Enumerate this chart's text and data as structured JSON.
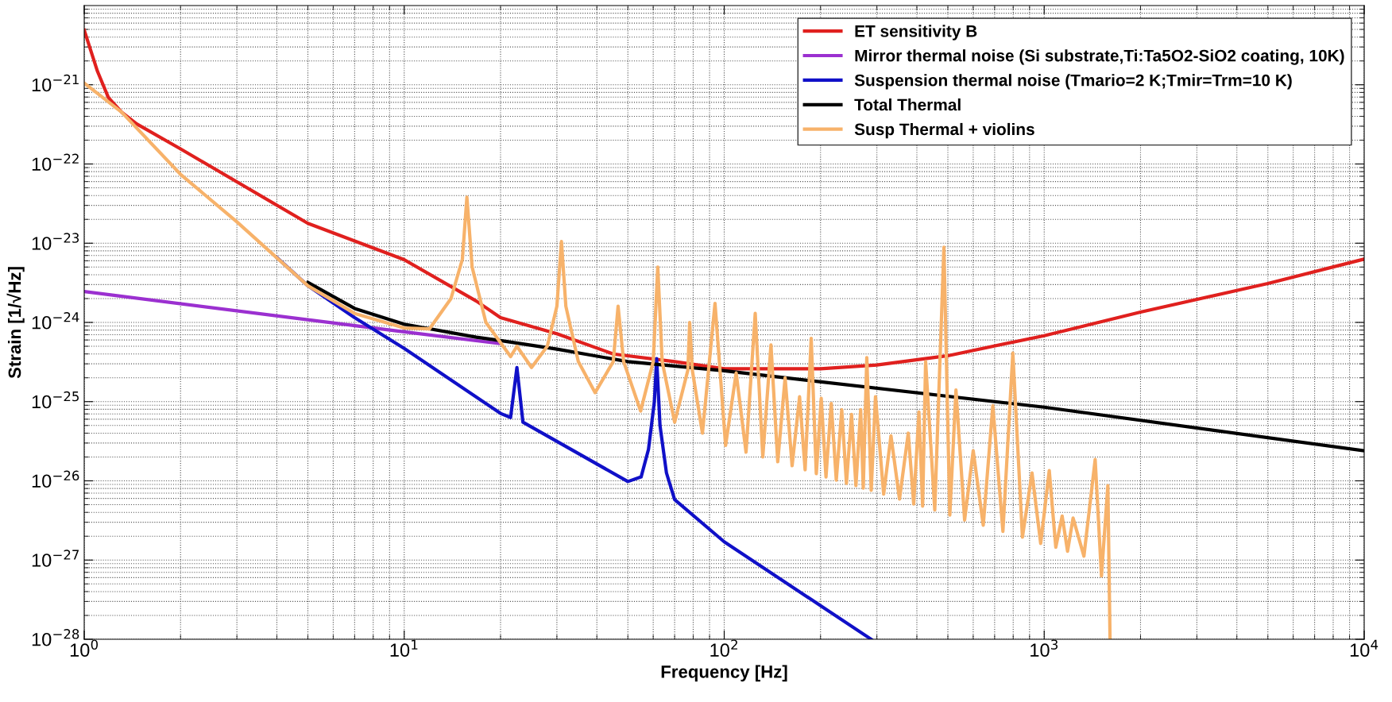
{
  "chart_data": {
    "type": "line",
    "xlabel": "Frequency [Hz]",
    "ylabel": "Strain [1/√Hz]",
    "log": "xy",
    "grid": true,
    "legend": "top right",
    "line_style": "solid",
    "marker": "none",
    "xlim": [
      1,
      10000
    ],
    "ylim": [
      1e-28,
      1e-20
    ],
    "xticks": [
      {
        "value": 1,
        "label": "10$^{0}$"
      },
      {
        "value": 10,
        "label": "10$^{1}$"
      },
      {
        "value": 100,
        "label": "10$^{2}$"
      },
      {
        "value": 1000,
        "label": "10$^{3}$"
      },
      {
        "value": 10000,
        "label": "10$^{4}$"
      }
    ],
    "yticks": [
      {
        "value": 1e-28,
        "label": "10$^{−28}$"
      },
      {
        "value": 1e-27,
        "label": "10$^{−27}$"
      },
      {
        "value": 1e-26,
        "label": "10$^{−26}$"
      },
      {
        "value": 1e-25,
        "label": "10$^{−25}$"
      },
      {
        "value": 1e-24,
        "label": "10$^{−24}$"
      },
      {
        "value": 1e-23,
        "label": "10$^{−23}$"
      },
      {
        "value": 1e-22,
        "label": "10$^{−22}$"
      },
      {
        "value": 1e-21,
        "label": "10$^{−21}$"
      }
    ],
    "series": [
      {
        "name": "ET sensitivity B",
        "color": "#e0201e",
        "x": [
          1,
          1.1,
          1.19,
          1.31,
          1.46,
          2,
          5,
          10,
          16.8,
          20,
          30,
          45,
          70,
          100,
          200,
          300,
          500,
          1000,
          2000,
          5000,
          10000
        ],
        "values": [
          4.9e-21,
          1.48e-21,
          6.9e-22,
          4.5e-22,
          3.2e-22,
          1.55e-22,
          1.78e-23,
          6.2e-24,
          1.86e-24,
          1.15e-24,
          7.2e-25,
          4e-25,
          3.2e-25,
          2.6e-25,
          2.6e-25,
          2.9e-25,
          3.8e-25,
          6.8e-25,
          1.35e-24,
          3.1e-24,
          6.3e-24
        ]
      },
      {
        "name": "Mirror thermal noise (Si substrate,Ti:Ta5O2-SiO2 coating, 10K)",
        "color": "#9b30d0",
        "x": [
          1,
          10,
          20
        ],
        "values": [
          2.45e-24,
          7.6e-25,
          5.4e-25
        ]
      },
      {
        "name": "Suspension thermal noise (Tmario=2 K;Tmir=Trm=10 K)",
        "color": "#1010c8",
        "x": [
          4,
          5,
          7,
          10,
          20,
          21.5,
          22.5,
          23.5,
          50,
          55,
          58,
          60.5,
          61.5,
          63,
          66,
          70,
          100,
          288
        ],
        "values": [
          6.6e-24,
          2.9e-24,
          1.15e-24,
          4.7e-25,
          7.1e-26,
          6.3e-26,
          2.7e-25,
          5.5e-26,
          9.8e-27,
          1.12e-26,
          2.5e-26,
          1e-25,
          3.5e-25,
          5e-26,
          1.26e-26,
          5.8e-27,
          1.7e-27,
          1e-28
        ]
      },
      {
        "name": "Total Thermal",
        "color": "#000000",
        "x": [
          5,
          7,
          10,
          16.8,
          20,
          30,
          50,
          100,
          1000,
          10000
        ],
        "values": [
          3.2e-24,
          1.5e-24,
          9.5e-25,
          6.5e-25,
          5.9e-25,
          4.6e-25,
          3.2e-25,
          2.45e-25,
          8.5e-26,
          2.4e-26
        ]
      },
      {
        "name": "Susp Thermal + violins",
        "color": "#f7b26a",
        "x": [
          1,
          1.31,
          2,
          3,
          5,
          7,
          10,
          12,
          14,
          15.2,
          15.7,
          16.3,
          18,
          21.5,
          22.5,
          25,
          28,
          30,
          31,
          32,
          35,
          39.5,
          45,
          46.6,
          48.5,
          54.8,
          60,
          62,
          64,
          70,
          77,
          78,
          79.5,
          85.5,
          93.6,
          101,
          109,
          117,
          125,
          132,
          140,
          147,
          155,
          163,
          172,
          179,
          187,
          194,
          201,
          208,
          216,
          224,
          233,
          241,
          250,
          258,
          267,
          272,
          279,
          288,
          297,
          315,
          332,
          353,
          376,
          391,
          406,
          417,
          426,
          455,
          486,
          507,
          530,
          564,
          600,
          645,
          691,
          743,
          798,
          855,
          916,
          975,
          1037,
          1087,
          1138,
          1183,
          1231,
          1331,
          1443,
          1510,
          1581,
          1606
        ],
        "values": [
          1.05e-21,
          4.5e-22,
          7.4e-23,
          1.86e-23,
          2.9e-24,
          1.3e-24,
          8.5e-25,
          8.3e-25,
          2e-24,
          6.3e-24,
          3.8e-23,
          5e-24,
          1e-24,
          3.7e-25,
          5e-25,
          2.7e-25,
          5e-25,
          1.6e-24,
          1.05e-23,
          1.6e-24,
          3.2e-25,
          1.3e-25,
          3.2e-25,
          1.6e-24,
          3.2e-25,
          7.6e-26,
          3.2e-25,
          5e-24,
          3.2e-25,
          5.5e-26,
          2.5e-25,
          1e-24,
          2.5e-25,
          4e-26,
          1.74e-24,
          2.8e-26,
          2.3e-25,
          2.3e-26,
          1.3e-24,
          2e-26,
          5.2e-25,
          1.74e-26,
          2e-25,
          1.55e-26,
          1.15e-25,
          1.38e-26,
          6.3e-25,
          1.23e-26,
          1.1e-25,
          1.12e-26,
          9.5e-26,
          1.02e-26,
          7.9e-26,
          9.3e-27,
          6.9e-26,
          8.7e-27,
          7.9e-26,
          8.1e-27,
          3.6e-25,
          7.6e-27,
          1.15e-25,
          6.8e-27,
          3.7e-26,
          5.9e-27,
          4e-26,
          5.1e-27,
          7.4e-26,
          4.8e-27,
          3.2e-25,
          4.3e-27,
          8.9e-24,
          3.7e-27,
          1.4e-25,
          3.2e-27,
          2.4e-26,
          2.75e-27,
          8.9e-26,
          2.3e-27,
          4.1e-25,
          1.95e-27,
          1.26e-26,
          1.62e-27,
          1.35e-26,
          1.45e-27,
          3.6e-27,
          1.29e-27,
          3.4e-27,
          1.12e-27,
          1.86e-26,
          6.3e-28,
          8.7e-27,
          1e-28
        ]
      }
    ]
  }
}
